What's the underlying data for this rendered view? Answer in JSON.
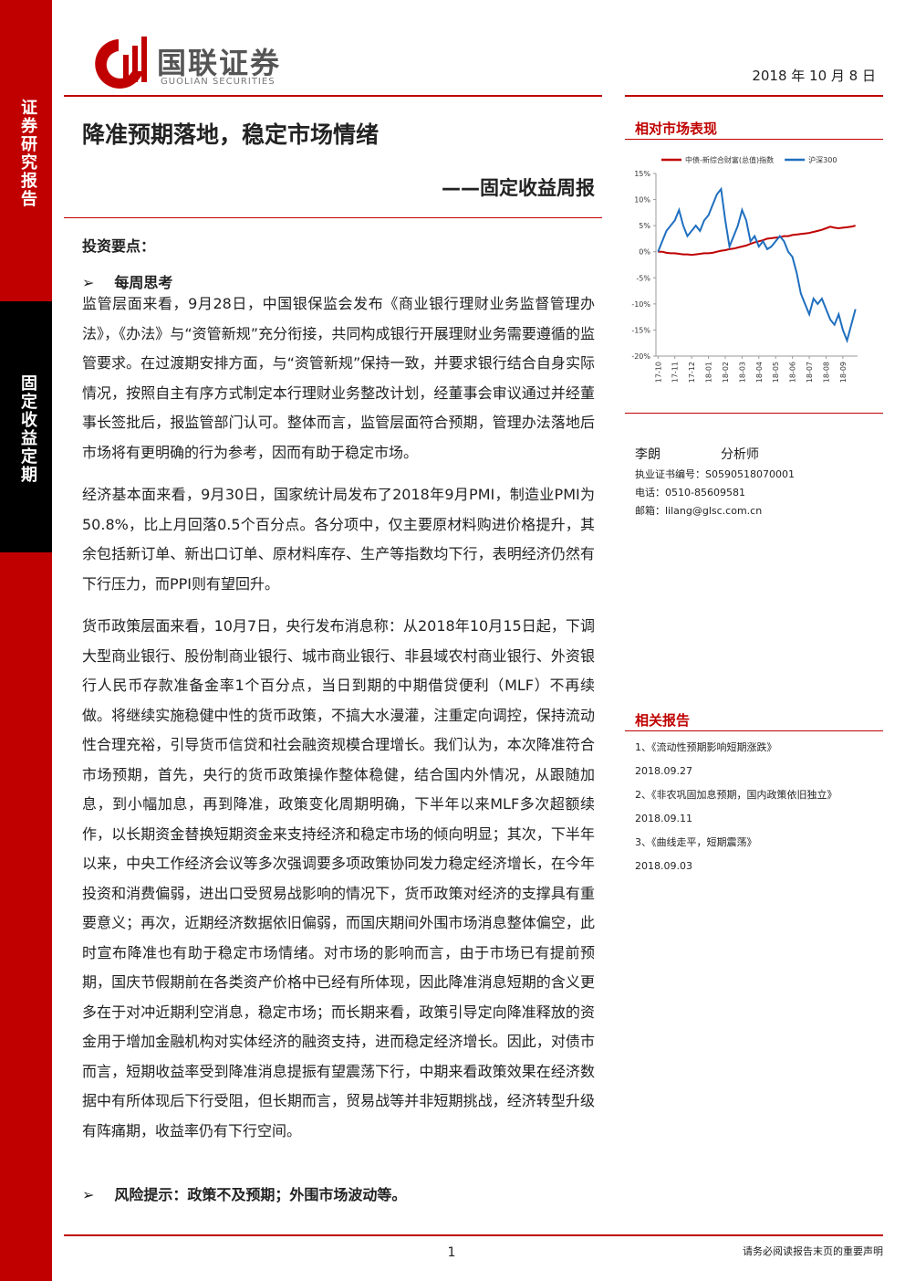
{
  "header": {
    "logo_cn": "国联证券",
    "logo_en": "GUOLIAN SECURITIES",
    "date": "2018 年 10 月 8 日"
  },
  "sidebar": {
    "top": "证券研究报告",
    "bottom": "固定收益定期"
  },
  "title": "降准预期落地，稳定市场情绪",
  "subtitle": "——固定收益周报",
  "body": {
    "heading": "投资要点：",
    "section": "每周思考",
    "paragraphs": [
      "监管层面来看，9月28日，中国银保监会发布《商业银行理财业务监督管理办法》，《办法》与“资管新规”充分衔接，共同构成银行开展理财业务需要遵循的监管要求。在过渡期安排方面，与“资管新规”保持一致，并要求银行结合自身实际情况，按照自主有序方式制定本行理财业务整改计划，经董事会审议通过并经董事长签批后，报监管部门认可。整体而言，监管层面符合预期，管理办法落地后市场将有更明确的行为参考，因而有助于稳定市场。",
      "经济基本面来看，9月30日，国家统计局发布了2018年9月PMI，制造业PMI为50.8%，比上月回落0.5个百分点。各分项中，仅主要原材料购进价格提升，其余包括新订单、新出口订单、原材料库存、生产等指数均下行，表明经济仍然有下行压力，而PPI则有望回升。",
      "货币政策层面来看，10月7日，央行发布消息称：从2018年10月15日起，下调大型商业银行、股份制商业银行、城市商业银行、非县域农村商业银行、外资银行人民币存款准备金率1个百分点，当日到期的中期借贷便利（MLF）不再续做。将继续实施稳健中性的货币政策，不搞大水漫灌，注重定向调控，保持流动性合理充裕，引导货币信贷和社会融资规模合理增长。我们认为，本次降准符合市场预期，首先，央行的货币政策操作整体稳健，结合国内外情况，从跟随加息，到小幅加息，再到降准，政策变化周期明确，下半年以来MLF多次超额续作，以长期资金替换短期资金来支持经济和稳定市场的倾向明显；其次，下半年以来，中央工作经济会议等多次强调要多项政策协同发力稳定经济增长，在今年投资和消费偏弱，进出口受贸易战影响的情况下，货币政策对经济的支撑具有重要意义；再次，近期经济数据依旧偏弱，而国庆期间外围市场消息整体偏空，此时宣布降准也有助于稳定市场情绪。对市场的影响而言，由于市场已有提前预期，国庆节假期前在各类资产价格中已经有所体现，因此降准消息短期的含义更多在于对冲近期利空消息，稳定市场；而长期来看，政策引导定向降准释放的资金用于增加金融机构对实体经济的融资支持，进而稳定经济增长。因此，对债市而言，短期收益率受到降准消息提振有望震荡下行，中期来看政策效果在经济数据中有所体现后下行受阻，但长期而言，贸易战等并非短期挑战，经济转型升级有阵痛期，收益率仍有下行空间。"
    ],
    "risk": "风险提示：政策不及预期；外围市场波动等。"
  },
  "market_heading": "相对市场表现",
  "chart_data": {
    "type": "line",
    "categories": [
      "17-10",
      null,
      null,
      null,
      "17-11",
      null,
      null,
      null,
      "17-12",
      null,
      null,
      null,
      "18-01",
      null,
      null,
      null,
      "18-02",
      null,
      null,
      null,
      "18-03",
      null,
      null,
      null,
      "18-04",
      null,
      null,
      null,
      "18-05",
      null,
      null,
      null,
      "18-06",
      null,
      null,
      null,
      "18-07",
      null,
      null,
      null,
      "18-08",
      null,
      null,
      null,
      "18-09",
      null,
      null,
      null
    ],
    "series": [
      {
        "name": "中债-新综合财富(总值)指数",
        "color": "#c00000",
        "values": [
          0,
          0,
          -0.2,
          -0.3,
          -0.3,
          -0.4,
          -0.5,
          -0.5,
          -0.6,
          -0.5,
          -0.4,
          -0.3,
          -0.3,
          -0.2,
          0,
          0.2,
          0.3,
          0.5,
          0.6,
          0.8,
          1,
          1.2,
          1.5,
          1.8,
          2,
          2.2,
          2.5,
          2.6,
          2.7,
          2.8,
          3,
          3,
          3.2,
          3.3,
          3.4,
          3.5,
          3.6,
          3.8,
          4,
          4.2,
          4.5,
          4.8,
          4.6,
          4.5,
          4.6,
          4.7,
          4.8,
          5
        ]
      },
      {
        "name": "沪深300",
        "color": "#1f6fbf",
        "values": [
          0,
          2,
          4,
          5,
          6,
          8,
          5,
          3,
          4,
          5,
          4,
          6,
          7,
          9,
          11,
          12,
          6,
          1,
          3,
          5,
          8,
          6,
          2,
          3,
          1,
          2,
          0.5,
          1,
          2,
          3,
          2,
          0,
          -1,
          -4,
          -8,
          -10,
          -12,
          -9,
          -10,
          -9,
          -11,
          -13,
          -14,
          -12,
          -15,
          -17,
          -14,
          -11
        ]
      }
    ],
    "ylim": [
      -20,
      15
    ],
    "yticks": [
      {
        "value": -20,
        "label": "-20%"
      },
      {
        "value": -15,
        "label": "-15%"
      },
      {
        "value": -10,
        "label": "-10%"
      },
      {
        "value": -5,
        "label": "-5%"
      },
      {
        "value": 0,
        "label": "0%"
      },
      {
        "value": 5,
        "label": "5%"
      },
      {
        "value": 10,
        "label": "10%"
      },
      {
        "value": 15,
        "label": "15%"
      }
    ],
    "grid": false
  },
  "analyst": {
    "name": "李朗",
    "role": "分析师",
    "license": "执业证书编号：S0590518070001",
    "phone": "电话：0510-85609581",
    "email": "邮箱：lilang@glsc.com.cn"
  },
  "related": {
    "heading": "相关报告",
    "items": [
      {
        "title": "1、《流动性预期影响短期涨跌》",
        "date": "2018.09.27"
      },
      {
        "title": "2、《非农巩固加息预期，国内政策依旧独立》",
        "date": "2018.09.11"
      },
      {
        "title": "3、《曲线走平，短期震荡》",
        "date": "2018.09.03"
      }
    ]
  },
  "footer": {
    "page": "1",
    "notice": "请务必阅读报告末页的重要声明"
  }
}
